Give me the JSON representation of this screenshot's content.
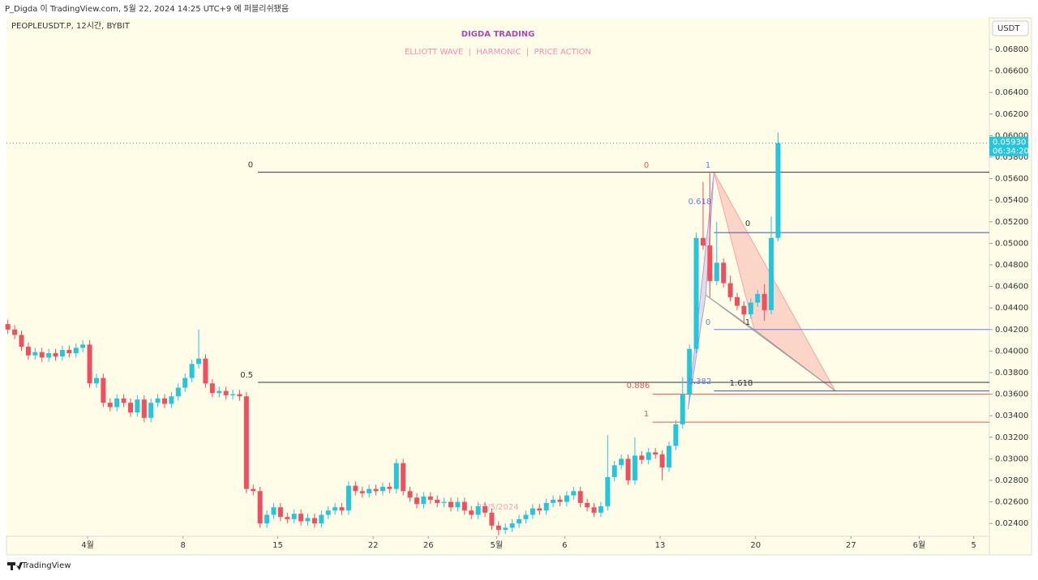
{
  "header": {
    "published": "P_Digda 이 TradingView.com, 5월 22, 2024 14:25 UTC+9 에 퍼블리쉬됐음",
    "symbol": "PEOPLEUSDT.P, 12시간, BYBIT",
    "currency": "USDT",
    "brand": "TradingView"
  },
  "chart_data": {
    "type": "candlestick",
    "title": "DIGDA TRADING",
    "subtitle": "ELLIOTT WAVE  |  HARMONIC  |  PRICE ACTION",
    "watermark": "22/5/2024",
    "open": [
      0.0425,
      0.042,
      0.0415,
      0.0404,
      0.0396,
      0.0399,
      0.0394,
      0.0398,
      0.0395,
      0.0401,
      0.0398,
      0.0403,
      0.0406,
      0.037,
      0.0375,
      0.0352,
      0.0348,
      0.0356,
      0.0352,
      0.0343,
      0.0355,
      0.0338,
      0.0352,
      0.0356,
      0.0351,
      0.0358,
      0.0366,
      0.0375,
      0.0388,
      0.0393,
      0.037,
      0.0361,
      0.0363,
      0.0359,
      0.036,
      0.0358,
      0.0272,
      0.027,
      0.024,
      0.0248,
      0.0255,
      0.0246,
      0.0244,
      0.0249,
      0.0242,
      0.0245,
      0.024,
      0.0248,
      0.0252,
      0.0255,
      0.0252,
      0.0275,
      0.027,
      0.0268,
      0.0272,
      0.027,
      0.0274,
      0.0272,
      0.0296,
      0.027,
      0.0264,
      0.0258,
      0.0265,
      0.0262,
      0.0259,
      0.026,
      0.0255,
      0.026,
      0.0252,
      0.0248,
      0.0256,
      0.025,
      0.0238,
      0.0234,
      0.0236,
      0.024,
      0.0244,
      0.0248,
      0.0254,
      0.0252,
      0.0259,
      0.0262,
      0.026,
      0.0266,
      0.027,
      0.0259,
      0.0255,
      0.025,
      0.0256,
      0.0283,
      0.0294,
      0.03,
      0.028,
      0.0303,
      0.0299,
      0.0306,
      0.0304,
      0.0292,
      0.0312,
      0.0332,
      0.036,
      0.0402,
      0.0505,
      0.0498,
      0.0465,
      0.0482,
      0.0463,
      0.045,
      0.0442,
      0.0434,
      0.0445,
      0.0453,
      0.0438,
      0.0505
    ],
    "high": [
      0.0429,
      0.0424,
      0.0419,
      0.0408,
      0.0403,
      0.0403,
      0.0402,
      0.0402,
      0.0405,
      0.0405,
      0.0407,
      0.041,
      0.041,
      0.0379,
      0.0379,
      0.0356,
      0.036,
      0.036,
      0.0356,
      0.0359,
      0.0359,
      0.0356,
      0.036,
      0.036,
      0.0362,
      0.037,
      0.0379,
      0.0392,
      0.042,
      0.0397,
      0.0374,
      0.0367,
      0.0367,
      0.0364,
      0.0364,
      0.0362,
      0.0276,
      0.0274,
      0.0252,
      0.0259,
      0.0259,
      0.025,
      0.0253,
      0.0253,
      0.0249,
      0.0249,
      0.0252,
      0.0256,
      0.0259,
      0.0259,
      0.0279,
      0.0279,
      0.0274,
      0.0276,
      0.0276,
      0.0278,
      0.0278,
      0.03,
      0.03,
      0.0274,
      0.0268,
      0.0269,
      0.0269,
      0.0266,
      0.0264,
      0.0264,
      0.0264,
      0.0264,
      0.0256,
      0.026,
      0.026,
      0.0254,
      0.0242,
      0.024,
      0.0244,
      0.0248,
      0.0252,
      0.0258,
      0.0258,
      0.0263,
      0.0266,
      0.0266,
      0.027,
      0.0274,
      0.0274,
      0.0263,
      0.0259,
      0.026,
      0.0322,
      0.0298,
      0.0304,
      0.0304,
      0.032,
      0.0307,
      0.031,
      0.031,
      0.0308,
      0.0316,
      0.0336,
      0.0376,
      0.0406,
      0.051,
      0.0557,
      0.0565,
      0.052,
      0.0486,
      0.047,
      0.0454,
      0.0446,
      0.0449,
      0.0457,
      0.0462,
      0.0525,
      0.0603
    ],
    "low": [
      0.0416,
      0.0411,
      0.04,
      0.0392,
      0.0392,
      0.039,
      0.039,
      0.0391,
      0.0391,
      0.0394,
      0.0394,
      0.0399,
      0.0366,
      0.0366,
      0.0348,
      0.0344,
      0.0344,
      0.0348,
      0.0339,
      0.0339,
      0.0334,
      0.0334,
      0.0348,
      0.0347,
      0.0347,
      0.0354,
      0.0362,
      0.0371,
      0.0384,
      0.0366,
      0.0357,
      0.0357,
      0.0355,
      0.0355,
      0.0354,
      0.0268,
      0.0266,
      0.0236,
      0.0236,
      0.0244,
      0.0242,
      0.024,
      0.024,
      0.0238,
      0.0238,
      0.0236,
      0.0236,
      0.0244,
      0.0248,
      0.0248,
      0.0248,
      0.0266,
      0.0264,
      0.0264,
      0.0266,
      0.0266,
      0.0268,
      0.0268,
      0.0266,
      0.026,
      0.0254,
      0.0254,
      0.0258,
      0.0255,
      0.0255,
      0.0251,
      0.0251,
      0.0248,
      0.0244,
      0.0244,
      0.0246,
      0.0234,
      0.0229,
      0.023,
      0.0232,
      0.0236,
      0.024,
      0.0244,
      0.0248,
      0.0248,
      0.0255,
      0.0256,
      0.0256,
      0.0262,
      0.0255,
      0.0251,
      0.0246,
      0.0246,
      0.0252,
      0.0279,
      0.029,
      0.0276,
      0.0276,
      0.0295,
      0.0295,
      0.03,
      0.028,
      0.0288,
      0.0308,
      0.0328,
      0.0356,
      0.0398,
      0.0494,
      0.045,
      0.0461,
      0.0459,
      0.0446,
      0.0438,
      0.0425,
      0.043,
      0.0441,
      0.0428,
      0.0434,
      0.0502
    ],
    "close": [
      0.042,
      0.0415,
      0.0404,
      0.0396,
      0.0399,
      0.0394,
      0.0398,
      0.0395,
      0.0401,
      0.0398,
      0.0403,
      0.0406,
      0.037,
      0.0375,
      0.0352,
      0.0348,
      0.0356,
      0.0352,
      0.0343,
      0.0355,
      0.0338,
      0.0352,
      0.0356,
      0.0351,
      0.0358,
      0.0366,
      0.0375,
      0.0388,
      0.0393,
      0.037,
      0.0361,
      0.0363,
      0.0359,
      0.036,
      0.0358,
      0.0272,
      0.027,
      0.024,
      0.0248,
      0.0255,
      0.0246,
      0.0244,
      0.0249,
      0.0242,
      0.0245,
      0.024,
      0.0248,
      0.0252,
      0.0255,
      0.0252,
      0.0275,
      0.027,
      0.0268,
      0.0272,
      0.027,
      0.0274,
      0.0272,
      0.0296,
      0.027,
      0.0264,
      0.0258,
      0.0265,
      0.0262,
      0.0259,
      0.026,
      0.0255,
      0.026,
      0.0252,
      0.0248,
      0.0256,
      0.025,
      0.0238,
      0.0234,
      0.0236,
      0.024,
      0.0244,
      0.0248,
      0.0254,
      0.0252,
      0.0259,
      0.0262,
      0.026,
      0.0266,
      0.027,
      0.0259,
      0.0255,
      0.025,
      0.0256,
      0.0283,
      0.0294,
      0.03,
      0.028,
      0.0303,
      0.0299,
      0.0306,
      0.0304,
      0.0292,
      0.0312,
      0.0332,
      0.036,
      0.0402,
      0.0505,
      0.0498,
      0.0465,
      0.0482,
      0.0463,
      0.045,
      0.0442,
      0.0434,
      0.0445,
      0.0453,
      0.0438,
      0.0505,
      0.0593
    ],
    "up_color": "#26c6da",
    "down_color": "#ef4f5f",
    "xlim": [
      -0.2,
      144
    ],
    "xticks": [
      {
        "value": 11.7,
        "label": "4월"
      },
      {
        "value": 25.7,
        "label": "8"
      },
      {
        "value": 39.6,
        "label": "15"
      },
      {
        "value": 53.6,
        "label": "22"
      },
      {
        "value": 61.7,
        "label": "26"
      },
      {
        "value": 71.7,
        "label": "5월"
      },
      {
        "value": 81.7,
        "label": "6"
      },
      {
        "value": 95.7,
        "label": "13"
      },
      {
        "value": 109.7,
        "label": "20"
      },
      {
        "value": 123.7,
        "label": "27"
      },
      {
        "value": 133.7,
        "label": "6월"
      },
      {
        "value": 141.7,
        "label": "5"
      }
    ],
    "ylim": [
      0.02281,
      0.07093
    ],
    "yticks": [
      {
        "value": 0.024,
        "label": "0.02400"
      },
      {
        "value": 0.026,
        "label": "0.02600"
      },
      {
        "value": 0.028,
        "label": "0.02800"
      },
      {
        "value": 0.03,
        "label": "0.03000"
      },
      {
        "value": 0.032,
        "label": "0.03200"
      },
      {
        "value": 0.034,
        "label": "0.03400"
      },
      {
        "value": 0.036,
        "label": "0.03600"
      },
      {
        "value": 0.038,
        "label": "0.03800"
      },
      {
        "value": 0.04,
        "label": "0.04000"
      },
      {
        "value": 0.042,
        "label": "0.04200"
      },
      {
        "value": 0.044,
        "label": "0.04400"
      },
      {
        "value": 0.046,
        "label": "0.04600"
      },
      {
        "value": 0.048,
        "label": "0.04800"
      },
      {
        "value": 0.05,
        "label": "0.05000"
      },
      {
        "value": 0.052,
        "label": "0.05200"
      },
      {
        "value": 0.054,
        "label": "0.05400"
      },
      {
        "value": 0.056,
        "label": "0.05600"
      },
      {
        "value": 0.058,
        "label": "0.05800"
      },
      {
        "value": 0.06,
        "label": "0.06000"
      },
      {
        "value": 0.062,
        "label": "0.06200"
      },
      {
        "value": 0.064,
        "label": "0.06400"
      },
      {
        "value": 0.066,
        "label": "0.06600"
      },
      {
        "value": 0.068,
        "label": "0.06800"
      }
    ],
    "last_price": {
      "value": 0.0593,
      "label": "0.05930"
    },
    "countdown": "06:34:20",
    "levels": [
      {
        "label": "0",
        "value": 0.0566,
        "color": "#333333",
        "from": 36.7
      },
      {
        "label": "0.5",
        "value": 0.0371,
        "color": "#333333",
        "from": 36.7
      },
      {
        "value": 0.051,
        "color": "#3f51b5",
        "from": 103.6
      },
      {
        "value": 0.042,
        "color": "#5c7cfa",
        "from": 103.6
      },
      {
        "value": 0.0363,
        "color": "#3f51b5",
        "from": 103.6
      },
      {
        "value": 0.036,
        "color": "#ef5350",
        "from": 94.6
      },
      {
        "value": 0.0334,
        "color": "#ef5350",
        "from": 94.6
      }
    ],
    "pattern": {
      "x": [
        99.8,
        103.6,
        102.4,
        109.5,
        121.4
      ],
      "y": [
        0.0346,
        0.0566,
        0.0452,
        0.042,
        0.0363
      ]
    },
    "annotations": [
      {
        "text": "0",
        "color": "#ef5350"
      },
      {
        "text": "1",
        "color": "#5c7cfa"
      },
      {
        "text": "0.618",
        "color": "#5c7cfa"
      },
      {
        "text": "0",
        "color": "#333333"
      },
      {
        "text": "0",
        "color": "#5c7cfa"
      },
      {
        "text": "1",
        "color": "#333333"
      },
      {
        "text": "0.382",
        "color": "#5c7cfa"
      },
      {
        "text": "1.618",
        "color": "#333333"
      },
      {
        "text": "0.886",
        "color": "#ef5350"
      },
      {
        "text": "1",
        "color": "#ef5350"
      }
    ]
  }
}
